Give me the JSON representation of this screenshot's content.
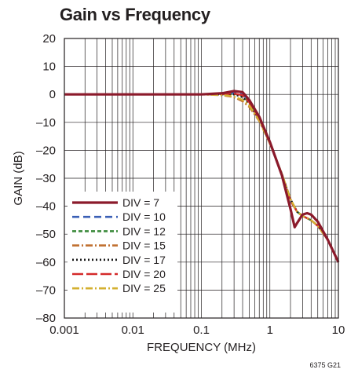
{
  "title": "Gain vs Frequency",
  "figure_code": "6375 G21",
  "chart_data": {
    "type": "line",
    "title": "Gain vs Frequency",
    "xlabel": "FREQUENCY (MHz)",
    "ylabel": "GAIN (dB)",
    "x_scale": "log",
    "xlim": [
      0.001,
      10
    ],
    "ylim": [
      -80,
      20
    ],
    "x_ticks": [
      0.001,
      0.01,
      0.1,
      1,
      10
    ],
    "x_tick_labels": [
      "0.001",
      "0.01",
      "0.1",
      "1",
      "10"
    ],
    "y_ticks": [
      20,
      10,
      0,
      -10,
      -20,
      -30,
      -40,
      -50,
      -60,
      -70,
      -80
    ],
    "y_tick_labels": [
      "20",
      "10",
      "0",
      "–10",
      "–20",
      "–30",
      "–40",
      "–50",
      "–60",
      "–70",
      "–80"
    ],
    "grid": true,
    "legend_position": "bottom-left",
    "series": [
      {
        "name": "DIV = 7",
        "color": "#8b1a2b",
        "style": "solid",
        "points": [
          [
            0.001,
            0
          ],
          [
            0.1,
            0
          ],
          [
            0.2,
            0.4
          ],
          [
            0.3,
            1.2
          ],
          [
            0.4,
            0.8
          ],
          [
            0.5,
            -2
          ],
          [
            0.7,
            -8
          ],
          [
            1,
            -17
          ],
          [
            1.5,
            -29
          ],
          [
            2,
            -41
          ],
          [
            2.3,
            -47.5
          ],
          [
            2.5,
            -46
          ],
          [
            3,
            -43
          ],
          [
            3.5,
            -42.5
          ],
          [
            4,
            -43
          ],
          [
            5,
            -45.5
          ],
          [
            7,
            -52
          ],
          [
            10,
            -60
          ]
        ]
      },
      {
        "name": "DIV = 10",
        "color": "#3a5fb5",
        "style": "dashed",
        "points": [
          [
            0.001,
            0
          ],
          [
            0.1,
            0
          ],
          [
            0.2,
            0.2
          ],
          [
            0.3,
            0.5
          ],
          [
            0.4,
            0
          ],
          [
            0.5,
            -2.5
          ],
          [
            0.7,
            -8.5
          ],
          [
            1,
            -17.5
          ],
          [
            1.5,
            -29
          ],
          [
            2,
            -38
          ],
          [
            2.5,
            -42
          ],
          [
            3,
            -43.5
          ],
          [
            4,
            -45
          ],
          [
            5,
            -47
          ],
          [
            7,
            -52
          ],
          [
            10,
            -60
          ]
        ]
      },
      {
        "name": "DIV = 12",
        "color": "#3d8b3d",
        "style": "dotted-dash",
        "points": [
          [
            0.001,
            0
          ],
          [
            0.1,
            0
          ],
          [
            0.2,
            0
          ],
          [
            0.3,
            0.2
          ],
          [
            0.4,
            -0.5
          ],
          [
            0.5,
            -3
          ],
          [
            0.7,
            -9
          ],
          [
            1,
            -17.5
          ],
          [
            1.5,
            -28.5
          ],
          [
            2,
            -37.5
          ],
          [
            2.5,
            -42
          ],
          [
            3,
            -43.5
          ],
          [
            4,
            -45
          ],
          [
            5,
            -47
          ],
          [
            7,
            -52
          ],
          [
            10,
            -60
          ]
        ]
      },
      {
        "name": "DIV = 15",
        "color": "#c07030",
        "style": "dash-dot",
        "points": [
          [
            0.001,
            0
          ],
          [
            0.1,
            0
          ],
          [
            0.2,
            -0.3
          ],
          [
            0.3,
            -1
          ],
          [
            0.4,
            -2.5
          ],
          [
            0.5,
            -4.5
          ],
          [
            0.7,
            -9.5
          ],
          [
            1,
            -17.5
          ],
          [
            1.5,
            -28.5
          ],
          [
            2,
            -37.5
          ],
          [
            2.5,
            -42
          ],
          [
            3,
            -43.5
          ],
          [
            4,
            -45
          ],
          [
            5,
            -47
          ],
          [
            7,
            -52
          ],
          [
            10,
            -60
          ]
        ]
      },
      {
        "name": "DIV = 17",
        "color": "#1a1a1a",
        "style": "dotted",
        "points": [
          [
            0.001,
            0
          ],
          [
            0.1,
            0
          ],
          [
            0.2,
            0
          ],
          [
            0.3,
            0
          ],
          [
            0.4,
            -1
          ],
          [
            0.5,
            -3.5
          ],
          [
            0.7,
            -9
          ],
          [
            1,
            -17.5
          ],
          [
            1.5,
            -28.5
          ],
          [
            2,
            -37.5
          ],
          [
            2.5,
            -42
          ],
          [
            3,
            -43.5
          ],
          [
            4,
            -45
          ],
          [
            5,
            -47
          ],
          [
            7,
            -52
          ],
          [
            10,
            -60
          ]
        ]
      },
      {
        "name": "DIV = 20",
        "color": "#d42a2a",
        "style": "long-dash",
        "points": [
          [
            0.001,
            0
          ],
          [
            0.1,
            0
          ],
          [
            0.2,
            0.1
          ],
          [
            0.3,
            0.3
          ],
          [
            0.4,
            -0.3
          ],
          [
            0.5,
            -2.8
          ],
          [
            0.7,
            -8.8
          ],
          [
            1,
            -17.5
          ],
          [
            1.5,
            -28.7
          ],
          [
            2,
            -38
          ],
          [
            2.5,
            -42
          ],
          [
            3,
            -43.5
          ],
          [
            4,
            -45
          ],
          [
            5,
            -47
          ],
          [
            7,
            -52
          ],
          [
            10,
            -60
          ]
        ]
      },
      {
        "name": "DIV = 25",
        "color": "#d4b030",
        "style": "dash-dot",
        "points": [
          [
            0.001,
            0
          ],
          [
            0.1,
            0
          ],
          [
            0.2,
            -0.2
          ],
          [
            0.3,
            -0.8
          ],
          [
            0.4,
            -2
          ],
          [
            0.5,
            -4
          ],
          [
            0.7,
            -9.3
          ],
          [
            1,
            -17.5
          ],
          [
            1.5,
            -28.5
          ],
          [
            2,
            -37.5
          ],
          [
            2.5,
            -42
          ],
          [
            3,
            -43.5
          ],
          [
            4,
            -45
          ],
          [
            5,
            -47
          ],
          [
            7,
            -52
          ],
          [
            10,
            -60
          ]
        ]
      }
    ]
  }
}
